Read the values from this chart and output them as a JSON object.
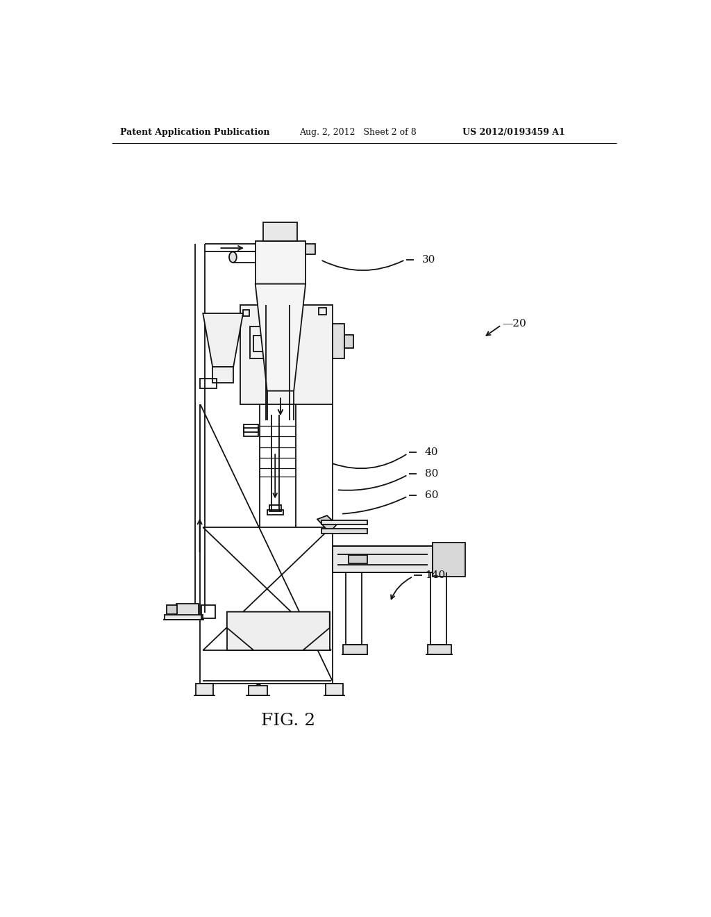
{
  "bg_color": "#ffffff",
  "line_color": "#111111",
  "lw": 1.3,
  "header_left": "Patent Application Publication",
  "header_center": "Aug. 2, 2012   Sheet 2 of 8",
  "header_right": "US 2012/0193459 A1",
  "figure_label": "FIG. 2"
}
